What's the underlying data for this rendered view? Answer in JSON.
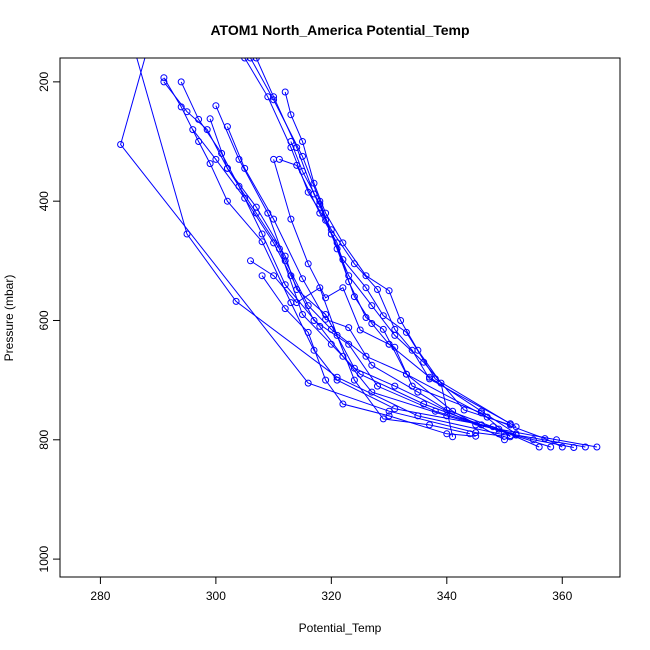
{
  "chart_data": {
    "type": "line",
    "title": "ATOM1 North_America Potential_Temp",
    "xlabel": "Potential_Temp",
    "ylabel": "Pressure (mbar)",
    "xlim": [
      273,
      370
    ],
    "ylim": [
      1030,
      160
    ],
    "y_inverted": true,
    "xticks": [
      280,
      300,
      320,
      340,
      360
    ],
    "yticks": [
      200,
      400,
      600,
      800,
      1000
    ],
    "grid": false,
    "legend": "none",
    "color": "#0000ff",
    "marker": "open-circle",
    "series": [
      {
        "values": [
          [
            286,
            150
          ],
          [
            295,
            455
          ],
          [
            303.5,
            568
          ],
          [
            321,
            695
          ],
          [
            335,
            760
          ],
          [
            349,
            790
          ],
          [
            351,
            793
          ]
        ]
      },
      {
        "values": [
          [
            288,
            150
          ],
          [
            283.5,
            305
          ],
          [
            316,
            705
          ],
          [
            330,
            752
          ],
          [
            345,
            788
          ],
          [
            350,
            794
          ]
        ]
      },
      {
        "values": [
          [
            291,
            193
          ],
          [
            294,
            242
          ],
          [
            297,
            300
          ],
          [
            299,
            337
          ],
          [
            302,
            400
          ],
          [
            308,
            468
          ],
          [
            313,
            570
          ],
          [
            317,
            650
          ],
          [
            321,
            700
          ],
          [
            331,
            748
          ],
          [
            348,
            778
          ],
          [
            356,
            812
          ]
        ]
      },
      {
        "values": [
          [
            291,
            200
          ],
          [
            295,
            250
          ],
          [
            298.5,
            280
          ],
          [
            302,
            345
          ],
          [
            307,
            420
          ],
          [
            311,
            480
          ],
          [
            315,
            590
          ],
          [
            320,
            640
          ],
          [
            325,
            690
          ],
          [
            336,
            740
          ],
          [
            346,
            775
          ],
          [
            358,
            812
          ]
        ]
      },
      {
        "values": [
          [
            294,
            200
          ],
          [
            297,
            263
          ],
          [
            301,
            320
          ],
          [
            304,
            375
          ],
          [
            308,
            455
          ],
          [
            312,
            540
          ],
          [
            318,
            610
          ],
          [
            322,
            660
          ],
          [
            327,
            720
          ],
          [
            340,
            760
          ],
          [
            355,
            800
          ],
          [
            362,
            813
          ]
        ]
      },
      {
        "values": [
          [
            296,
            280
          ],
          [
            300,
            330
          ],
          [
            305,
            395
          ],
          [
            310,
            470
          ],
          [
            313,
            525
          ],
          [
            317,
            600
          ],
          [
            323,
            640
          ],
          [
            328,
            710
          ],
          [
            338,
            752
          ],
          [
            352,
            792
          ],
          [
            364,
            812
          ]
        ]
      },
      {
        "values": [
          [
            299,
            262
          ],
          [
            302,
            345
          ],
          [
            307,
            410
          ],
          [
            312,
            492
          ],
          [
            314,
            548
          ],
          [
            319,
            590
          ],
          [
            324,
            680
          ],
          [
            331,
            710
          ],
          [
            345,
            775
          ],
          [
            359,
            800
          ],
          [
            366,
            812
          ]
        ]
      },
      {
        "values": [
          [
            300,
            240
          ],
          [
            304,
            330
          ],
          [
            309,
            420
          ],
          [
            312,
            500
          ],
          [
            316,
            575
          ],
          [
            320,
            615
          ],
          [
            326,
            660
          ],
          [
            333,
            690
          ],
          [
            347,
            762
          ],
          [
            357,
            798
          ],
          [
            360,
            812
          ]
        ]
      },
      {
        "values": [
          [
            302,
            275
          ],
          [
            305,
            345
          ],
          [
            310,
            430
          ],
          [
            315,
            530
          ],
          [
            319,
            598
          ],
          [
            323,
            612
          ],
          [
            327,
            675
          ],
          [
            335,
            720
          ],
          [
            340,
            750
          ],
          [
            349,
            782
          ],
          [
            352,
            792
          ]
        ]
      },
      {
        "values": [
          [
            305,
            160
          ],
          [
            309,
            225
          ],
          [
            313,
            310
          ],
          [
            316,
            385
          ],
          [
            319,
            432
          ],
          [
            322,
            498
          ],
          [
            326,
            545
          ],
          [
            329,
            592
          ],
          [
            333,
            620
          ],
          [
            338,
            698
          ],
          [
            351,
            773
          ]
        ]
      },
      {
        "values": [
          [
            306,
            160
          ],
          [
            310,
            230
          ],
          [
            315,
            325
          ],
          [
            318,
            400
          ],
          [
            320,
            455
          ],
          [
            323,
            525
          ],
          [
            327,
            575
          ],
          [
            331,
            625
          ],
          [
            336,
            670
          ],
          [
            343,
            750
          ],
          [
            351,
            775
          ]
        ]
      },
      {
        "values": [
          [
            307,
            160
          ],
          [
            310,
            225
          ],
          [
            314,
            310
          ],
          [
            317,
            388
          ],
          [
            320,
            448
          ],
          [
            324,
            505
          ],
          [
            328,
            548
          ],
          [
            331,
            615
          ],
          [
            334,
            650
          ],
          [
            337,
            698
          ],
          [
            352,
            778
          ]
        ]
      },
      {
        "values": [
          [
            310,
            330
          ],
          [
            313,
            430
          ],
          [
            316,
            505
          ],
          [
            319,
            562
          ],
          [
            322,
            545
          ],
          [
            325,
            616
          ],
          [
            330,
            640
          ],
          [
            331,
            645
          ],
          [
            334,
            710
          ],
          [
            346,
            755
          ],
          [
            351,
            795
          ]
        ]
      },
      {
        "values": [
          [
            311,
            330
          ],
          [
            314,
            340
          ],
          [
            318,
            420
          ],
          [
            321,
            470
          ],
          [
            323,
            535
          ],
          [
            326,
            595
          ],
          [
            329,
            615
          ],
          [
            333,
            690
          ],
          [
            341,
            752
          ],
          [
            350,
            800
          ]
        ]
      },
      {
        "values": [
          [
            312,
            217
          ],
          [
            313,
            255
          ],
          [
            315,
            300
          ],
          [
            317,
            370
          ],
          [
            319,
            420
          ],
          [
            322,
            470
          ],
          [
            326,
            525
          ],
          [
            330,
            550
          ],
          [
            332,
            600
          ],
          [
            335,
            650
          ],
          [
            339,
            705
          ],
          [
            341,
            795
          ]
        ]
      },
      {
        "values": [
          [
            313,
            300
          ],
          [
            315,
            350
          ],
          [
            318,
            405
          ],
          [
            321,
            480
          ],
          [
            324,
            560
          ],
          [
            327,
            605
          ],
          [
            330,
            640
          ],
          [
            337,
            695
          ],
          [
            346,
            752
          ],
          [
            352,
            790
          ]
        ]
      },
      {
        "values": [
          [
            306,
            500
          ],
          [
            310,
            525
          ],
          [
            314,
            570
          ],
          [
            318,
            545
          ],
          [
            321,
            625
          ],
          [
            324,
            700
          ],
          [
            329,
            765
          ],
          [
            337,
            775
          ],
          [
            344,
            790
          ]
        ]
      },
      {
        "values": [
          [
            308,
            525
          ],
          [
            312,
            580
          ],
          [
            316,
            620
          ],
          [
            319,
            700
          ],
          [
            322,
            740
          ],
          [
            330,
            760
          ],
          [
            340,
            790
          ],
          [
            345,
            794
          ]
        ]
      }
    ]
  }
}
